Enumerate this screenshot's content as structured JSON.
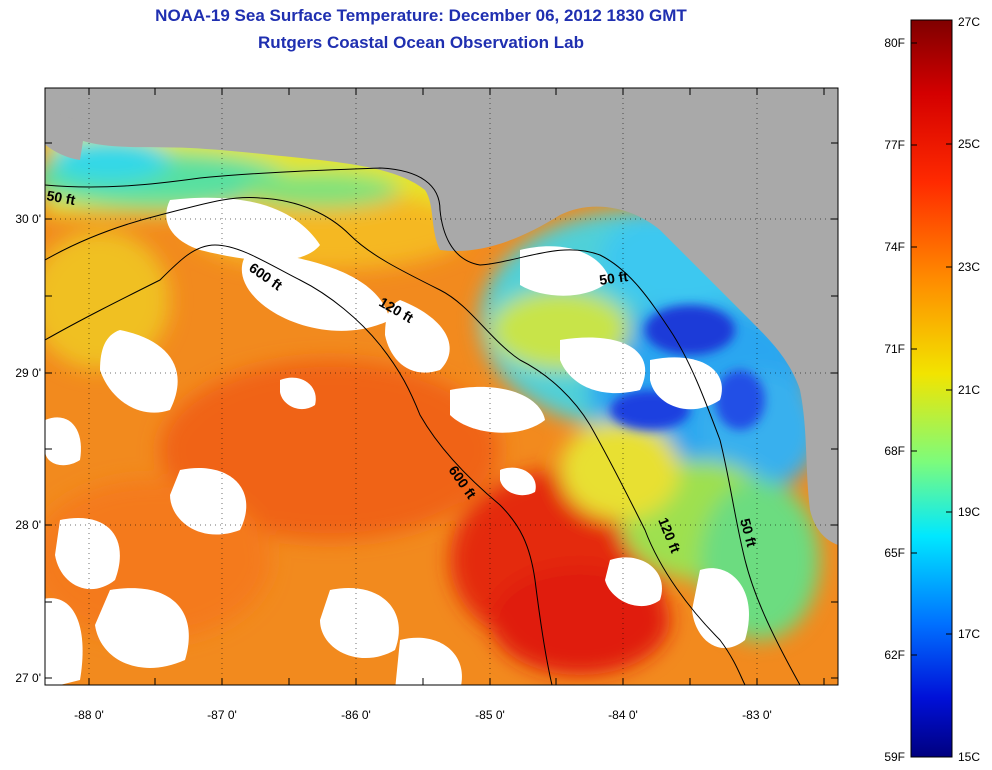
{
  "title": "NOAA-19 Sea Surface Temperature:  December 06, 2012 1830 GMT",
  "subtitle": "Rutgers Coastal Ocean Observation Lab",
  "map": {
    "lat_labels": [
      "30 0'",
      "29 0'",
      "28 0'",
      "27 0'"
    ],
    "lon_labels": [
      "-88 0'",
      "-87 0'",
      "-86 0'",
      "-85 0'",
      "-84 0'",
      "-83 0'"
    ],
    "contour_labels": [
      "50 ft",
      "600 ft",
      "120 ft",
      "50 ft",
      "600 ft",
      "120 ft",
      "50 ft"
    ]
  },
  "colorbar": {
    "fahrenheit_labels": [
      "80F",
      "77F",
      "74F",
      "71F",
      "68F",
      "65F",
      "62F",
      "59F"
    ],
    "celsius_labels": [
      "27C",
      "25C",
      "23C",
      "21C",
      "19C",
      "17C",
      "15C"
    ]
  },
  "colors": {
    "title": "#1f2fb0",
    "land": "#a9a9a9",
    "cloud": "#ffffff"
  }
}
